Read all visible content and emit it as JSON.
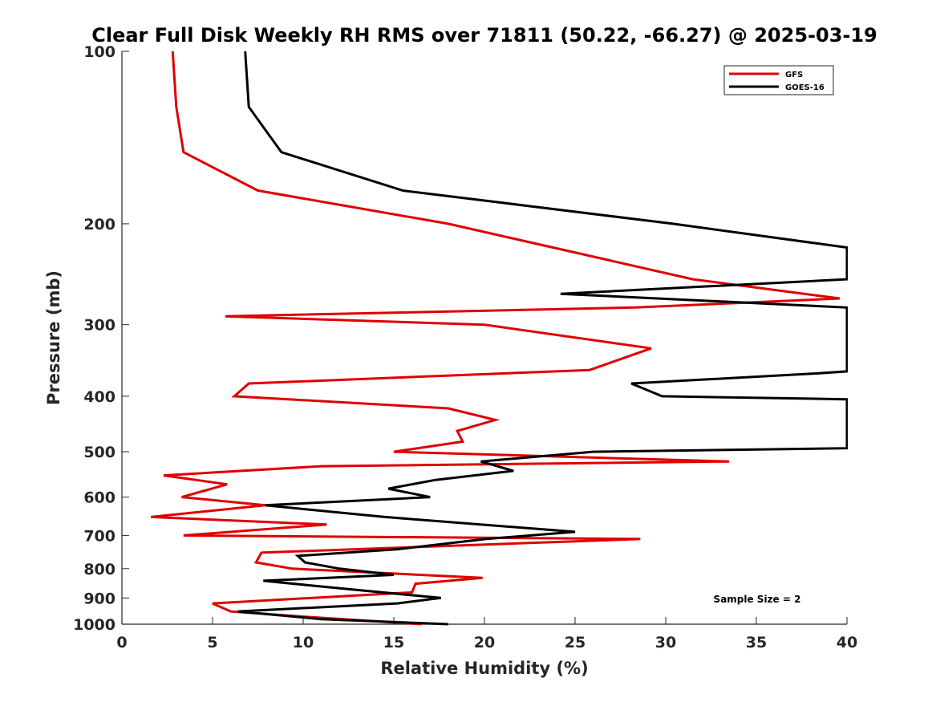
{
  "chart_data": {
    "type": "line",
    "title": "Clear Full Disk Weekly RH RMS over 71811 (50.22, -66.27) @ 2025-03-19",
    "xlabel": "Relative Humidity (%)",
    "ylabel": "Pressure (mb)",
    "xlim": [
      0,
      40
    ],
    "ylim": [
      100,
      1000
    ],
    "y_scale": "log",
    "y_reversed": true,
    "x_ticks": [
      0,
      5,
      10,
      15,
      20,
      25,
      30,
      35,
      40
    ],
    "x_tick_labels": [
      "0",
      "5",
      "10",
      "15",
      "20",
      "25",
      "30",
      "35",
      "40"
    ],
    "y_ticks": [
      100,
      200,
      300,
      400,
      500,
      600,
      700,
      800,
      900,
      1000
    ],
    "y_tick_labels": [
      "100",
      "200",
      "300",
      "400",
      "500",
      "600",
      "700",
      "800",
      "900",
      "1000"
    ],
    "grid": false,
    "legend_position": "top-right",
    "annotation": "Sample Size = 2",
    "series": [
      {
        "name": "GFS",
        "color": "#e00000",
        "points": [
          [
            2.8,
            100
          ],
          [
            3.0,
            125
          ],
          [
            3.4,
            150
          ],
          [
            7.5,
            175
          ],
          [
            18.0,
            200
          ],
          [
            31.5,
            250
          ],
          [
            39.6,
            270
          ],
          [
            28.3,
            280
          ],
          [
            5.7,
            290
          ],
          [
            20.0,
            300
          ],
          [
            29.2,
            330
          ],
          [
            25.8,
            360
          ],
          [
            7.0,
            380
          ],
          [
            6.2,
            400
          ],
          [
            18.0,
            420
          ],
          [
            20.6,
            440
          ],
          [
            18.5,
            460
          ],
          [
            18.8,
            480
          ],
          [
            15.0,
            500
          ],
          [
            33.5,
            520
          ],
          [
            11.0,
            530
          ],
          [
            2.3,
            550
          ],
          [
            5.8,
            570
          ],
          [
            3.3,
            600
          ],
          [
            7.9,
            620
          ],
          [
            1.6,
            650
          ],
          [
            11.3,
            670
          ],
          [
            3.4,
            700
          ],
          [
            28.6,
            710
          ],
          [
            7.7,
            750
          ],
          [
            7.4,
            780
          ],
          [
            9.4,
            800
          ],
          [
            19.9,
            830
          ],
          [
            16.2,
            850
          ],
          [
            16.0,
            880
          ],
          [
            5.0,
            920
          ],
          [
            6.0,
            950
          ],
          [
            10.0,
            970
          ],
          [
            16.5,
            1000
          ]
        ]
      },
      {
        "name": "GOES-16",
        "color": "#000000",
        "points": [
          [
            6.8,
            100
          ],
          [
            7.0,
            125
          ],
          [
            8.8,
            150
          ],
          [
            15.5,
            175
          ],
          [
            30.4,
            200
          ],
          [
            40.0,
            220
          ],
          [
            40.0,
            250
          ],
          [
            24.2,
            265
          ],
          [
            40.0,
            280
          ],
          [
            40.0,
            300
          ],
          [
            40.0,
            350
          ],
          [
            40.0,
            362
          ],
          [
            38.3,
            365
          ],
          [
            28.1,
            380
          ],
          [
            29.8,
            400
          ],
          [
            40.0,
            405
          ],
          [
            40.0,
            480
          ],
          [
            40.0,
            493
          ],
          [
            26.0,
            500
          ],
          [
            19.8,
            520
          ],
          [
            21.6,
            540
          ],
          [
            17.3,
            560
          ],
          [
            14.7,
            580
          ],
          [
            17.0,
            600
          ],
          [
            7.9,
            620
          ],
          [
            14.5,
            650
          ],
          [
            25.0,
            690
          ],
          [
            20.1,
            710
          ],
          [
            15.2,
            740
          ],
          [
            9.7,
            760
          ],
          [
            10.1,
            780
          ],
          [
            12.0,
            800
          ],
          [
            15.0,
            820
          ],
          [
            7.8,
            840
          ],
          [
            12.7,
            870
          ],
          [
            17.6,
            900
          ],
          [
            15.2,
            920
          ],
          [
            6.4,
            950
          ],
          [
            11.0,
            980
          ],
          [
            18.0,
            1000
          ]
        ]
      }
    ]
  }
}
